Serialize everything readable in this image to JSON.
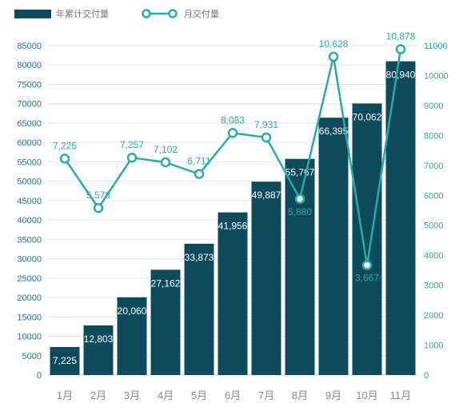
{
  "chart_data": {
    "type": "bar",
    "categories": [
      "1月",
      "2月",
      "3月",
      "4月",
      "5月",
      "6月",
      "7月",
      "8月",
      "9月",
      "10月",
      "11月"
    ],
    "series": [
      {
        "name": "年累计交付量",
        "type": "bar",
        "axis": "left",
        "values": [
          7225,
          12803,
          20060,
          27162,
          33873,
          41956,
          49887,
          55767,
          66395,
          70062,
          80940
        ],
        "labels": [
          "7,225",
          "12,803",
          "20,060",
          "27,162",
          "33,873",
          "41,956",
          "49,887",
          "55,767",
          "66,395",
          "70,062",
          "80,940"
        ]
      },
      {
        "name": "月交付量",
        "type": "line",
        "axis": "right",
        "values": [
          7225,
          5578,
          7257,
          7102,
          6711,
          8083,
          7931,
          5880,
          10628,
          3667,
          10878
        ],
        "labels": [
          "7,225",
          "5,578",
          "7,257",
          "7,102",
          "6,711",
          "8,083",
          "7,931",
          "5,880",
          "10,628",
          "3,667",
          "10,878"
        ]
      }
    ],
    "y_left": {
      "lim": [
        0,
        85000
      ],
      "ticks": [
        "0",
        "5000",
        "10000",
        "15000",
        "20000",
        "25000",
        "30000",
        "35000",
        "40000",
        "45000",
        "50000",
        "55000",
        "60000",
        "65000",
        "70000",
        "75000",
        "80000",
        "85000"
      ]
    },
    "y_right": {
      "lim": [
        0,
        11000
      ],
      "ticks": [
        "0",
        "1000",
        "2000",
        "3000",
        "4000",
        "5000",
        "6000",
        "7000",
        "8000",
        "9000",
        "10000",
        "11000"
      ]
    },
    "grid": true,
    "legend": "top-left",
    "colors": {
      "bar": "#0d4a5b",
      "line": "#2aaaa8",
      "left_tick": "#2e6f88",
      "right_tick": "#2aaaa8",
      "grid": "#e6e6e6"
    }
  }
}
